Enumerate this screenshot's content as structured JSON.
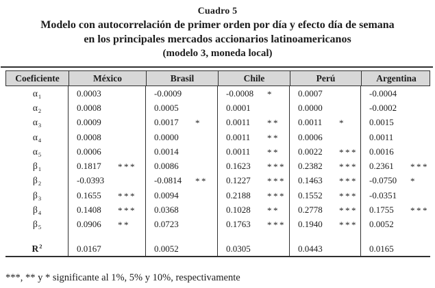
{
  "title": {
    "caption": "Cuadro 5",
    "line1": "Modelo con autocorrelación de primer orden por día y efecto día de semana",
    "line2": "en los principales mercados accionarios latinoamericanos",
    "line3": "(modelo 3, moneda local)"
  },
  "chart_data": {
    "type": "table",
    "title": "Cuadro 5. Modelo con autocorrelación de primer orden por día y efecto día de semana en los principales mercados accionarios latinoamericanos (modelo 3, moneda local)",
    "columns": [
      "Coeficiente",
      "México",
      "Brasil",
      "Chile",
      "Perú",
      "Argentina"
    ],
    "significance_legend": "*** 1%, ** 5%, * 10%"
  },
  "table": {
    "headers": [
      "Coeficiente",
      "México",
      "Brasil",
      "Chile",
      "Perú",
      "Argentina"
    ],
    "rows": [
      {
        "sym": "α",
        "sub": "1",
        "cells": [
          [
            "0.0003",
            ""
          ],
          [
            "-0.0009",
            ""
          ],
          [
            "-0.0008",
            "*"
          ],
          [
            "0.0007",
            ""
          ],
          [
            "-0.0004",
            ""
          ]
        ]
      },
      {
        "sym": "α",
        "sub": "2",
        "cells": [
          [
            "0.0008",
            ""
          ],
          [
            "0.0005",
            ""
          ],
          [
            "0.0001",
            ""
          ],
          [
            "0.0000",
            ""
          ],
          [
            "-0.0002",
            ""
          ]
        ]
      },
      {
        "sym": "α",
        "sub": "3",
        "cells": [
          [
            "0.0009",
            ""
          ],
          [
            "0.0017",
            "*"
          ],
          [
            "0.0011",
            "**"
          ],
          [
            "0.0011",
            "*"
          ],
          [
            "0.0015",
            ""
          ]
        ]
      },
      {
        "sym": "α",
        "sub": "4",
        "cells": [
          [
            "0.0008",
            ""
          ],
          [
            "0.0000",
            ""
          ],
          [
            "0.0011",
            "**"
          ],
          [
            "0.0006",
            ""
          ],
          [
            "0.0011",
            ""
          ]
        ]
      },
      {
        "sym": "α",
        "sub": "5",
        "cells": [
          [
            "0.0006",
            ""
          ],
          [
            "0.0014",
            ""
          ],
          [
            "0.0011",
            "**"
          ],
          [
            "0.0022",
            "***"
          ],
          [
            "0.0016",
            ""
          ]
        ]
      },
      {
        "sym": "β",
        "sub": "1",
        "cells": [
          [
            "0.1817",
            "***"
          ],
          [
            "0.0086",
            ""
          ],
          [
            "0.1623",
            "***"
          ],
          [
            "0.2382",
            "***"
          ],
          [
            "0.2361",
            "***"
          ]
        ]
      },
      {
        "sym": "β",
        "sub": "2",
        "cells": [
          [
            "-0.0393",
            ""
          ],
          [
            "-0.0814",
            "**"
          ],
          [
            "0.1227",
            "***"
          ],
          [
            "0.1463",
            "***"
          ],
          [
            "-0.0750",
            "*"
          ]
        ]
      },
      {
        "sym": "β",
        "sub": "3",
        "cells": [
          [
            "0.1655",
            "***"
          ],
          [
            "0.0094",
            ""
          ],
          [
            "0.2188",
            "***"
          ],
          [
            "0.1552",
            "***"
          ],
          [
            "-0.0351",
            ""
          ]
        ]
      },
      {
        "sym": "β",
        "sub": "4",
        "cells": [
          [
            "0.1408",
            "***"
          ],
          [
            "0.0368",
            ""
          ],
          [
            "0.1028",
            "**"
          ],
          [
            "0.2778",
            "***"
          ],
          [
            "0.1755",
            "***"
          ]
        ]
      },
      {
        "sym": "β",
        "sub": "5",
        "cells": [
          [
            "0.0906",
            "**"
          ],
          [
            "0.0723",
            ""
          ],
          [
            "0.1763",
            "***"
          ],
          [
            "0.1940",
            "***"
          ],
          [
            "0.0052",
            ""
          ]
        ]
      }
    ],
    "r2_row": {
      "sym": "R",
      "sup": "2",
      "cells": [
        [
          "0.0167",
          ""
        ],
        [
          "0.0052",
          ""
        ],
        [
          "0.0305",
          ""
        ],
        [
          "0.0443",
          ""
        ],
        [
          "0.0165",
          ""
        ]
      ]
    }
  },
  "footnote": "***, ** y * significante al 1%, 5% y 10%, respectivamente",
  "colors": {
    "header_bg": "#d8d8d8",
    "border": "#2f2f2f",
    "text": "#1b1b1b",
    "background": "#ffffff"
  }
}
